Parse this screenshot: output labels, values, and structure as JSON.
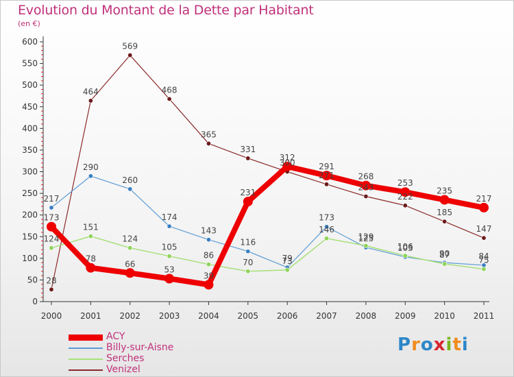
{
  "header": {
    "title": "Evolution du Montant de la Dette par Habitant",
    "unit": "(en €)"
  },
  "logo": {
    "text": "Proxiti",
    "letters": [
      {
        "ch": "P",
        "color": "#2e86c8"
      },
      {
        "ch": "r",
        "color": "#f08c1e"
      },
      {
        "ch": "o",
        "color": "#2e86c8"
      },
      {
        "ch": "x",
        "color": "#d8262f"
      },
      {
        "ch": "i",
        "color": "#7ab51d"
      },
      {
        "ch": "t",
        "color": "#f08c1e"
      },
      {
        "ch": "i",
        "color": "#2e86c8"
      }
    ]
  },
  "chart_data": {
    "type": "line",
    "title": "Evolution du Montant de la Dette par Habitant",
    "subtitle": "(en €)",
    "xlabel": "",
    "ylabel": "",
    "x": [
      "2000",
      "2001",
      "2002",
      "2003",
      "2004",
      "2005",
      "2006",
      "2007",
      "2008",
      "2009",
      "2010",
      "2011"
    ],
    "ylim": [
      0,
      600
    ],
    "yticks": [
      0,
      50,
      100,
      150,
      200,
      250,
      300,
      350,
      400,
      450,
      500,
      550,
      600
    ],
    "grid": false,
    "legend_position": "bottom-left",
    "series": [
      {
        "name": "ACY",
        "color": "#ee0000",
        "marker": "#ee0000",
        "width": 8,
        "values": [
          173,
          78,
          66,
          53,
          39,
          231,
          312,
          291,
          268,
          253,
          235,
          217
        ]
      },
      {
        "name": "Billy-sur-Aisne",
        "color": "#5b9bd5",
        "marker": "#3a7fc2",
        "width": 1.2,
        "values": [
          217,
          290,
          260,
          174,
          143,
          116,
          79,
          173,
          125,
          103,
          90,
          84
        ]
      },
      {
        "name": "Serches",
        "color": "#a6e07a",
        "marker": "#8fd35a",
        "width": 1.5,
        "values": [
          124,
          151,
          124,
          105,
          86,
          70,
          73,
          146,
          129,
          106,
          87,
          75
        ]
      },
      {
        "name": "Venizel",
        "color": "#8b2a2a",
        "marker": "#6b1a1a",
        "width": 1.2,
        "values": [
          28,
          464,
          569,
          468,
          365,
          331,
          300,
          271,
          243,
          222,
          185,
          147
        ]
      }
    ],
    "data_labels": [
      {
        "series": "ACY",
        "values": [
          173,
          78,
          66,
          53,
          39,
          231,
          312,
          291,
          268,
          253,
          235,
          217
        ]
      },
      {
        "series": "Billy-sur-Aisne",
        "values": [
          217,
          290,
          260,
          174,
          143,
          116,
          79,
          173,
          125,
          103,
          90,
          84
        ]
      },
      {
        "series": "Serches",
        "values": [
          124,
          151,
          124,
          105,
          86,
          70,
          73,
          146,
          129,
          106,
          87,
          75
        ]
      },
      {
        "series": "Venizel",
        "values": [
          28,
          464,
          569,
          468,
          365,
          331,
          300,
          271,
          243,
          222,
          185,
          147
        ]
      }
    ]
  }
}
